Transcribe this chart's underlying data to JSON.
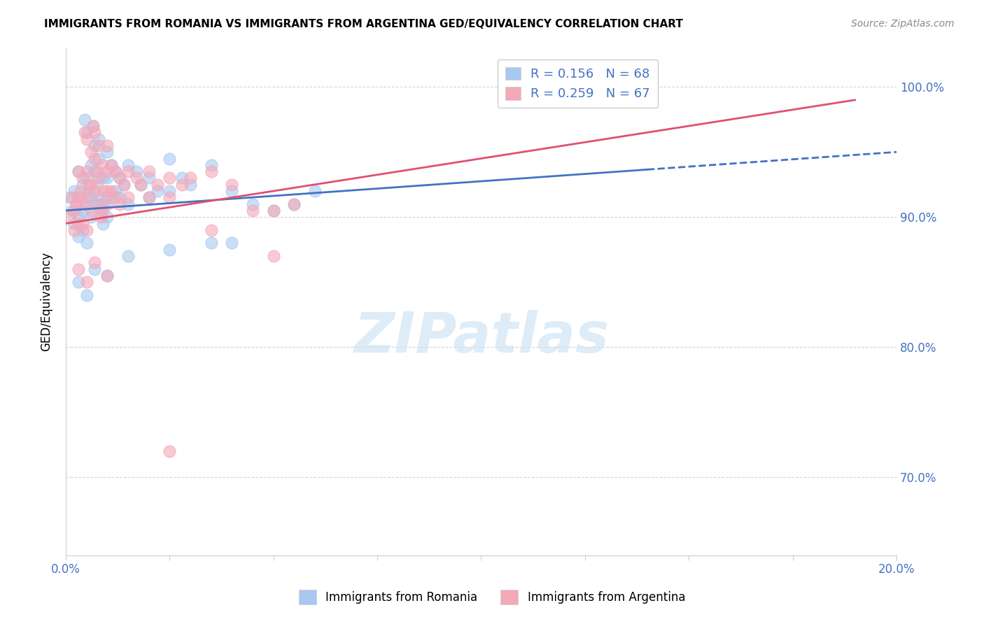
{
  "title": "IMMIGRANTS FROM ROMANIA VS IMMIGRANTS FROM ARGENTINA GED/EQUIVALENCY CORRELATION CHART",
  "source": "Source: ZipAtlas.com",
  "ylabel": "GED/Equivalency",
  "y_ticks": [
    70.0,
    80.0,
    90.0,
    100.0
  ],
  "x_range": [
    0.0,
    20.0
  ],
  "y_range": [
    64.0,
    103.0
  ],
  "romania_color": "#A8C8F0",
  "argentina_color": "#F4A8B8",
  "romania_line_color": "#4472C4",
  "argentina_line_color": "#E05070",
  "romania_points": [
    [
      0.1,
      91.5
    ],
    [
      0.15,
      90.5
    ],
    [
      0.2,
      92.0
    ],
    [
      0.2,
      89.5
    ],
    [
      0.25,
      91.0
    ],
    [
      0.3,
      93.5
    ],
    [
      0.3,
      90.0
    ],
    [
      0.3,
      88.5
    ],
    [
      0.35,
      91.5
    ],
    [
      0.4,
      92.5
    ],
    [
      0.4,
      90.5
    ],
    [
      0.4,
      89.0
    ],
    [
      0.45,
      97.5
    ],
    [
      0.5,
      96.5
    ],
    [
      0.5,
      93.0
    ],
    [
      0.5,
      91.0
    ],
    [
      0.5,
      88.0
    ],
    [
      0.55,
      92.0
    ],
    [
      0.6,
      94.0
    ],
    [
      0.6,
      91.5
    ],
    [
      0.6,
      90.0
    ],
    [
      0.65,
      97.0
    ],
    [
      0.7,
      95.5
    ],
    [
      0.7,
      93.5
    ],
    [
      0.7,
      91.0
    ],
    [
      0.75,
      92.5
    ],
    [
      0.8,
      96.0
    ],
    [
      0.8,
      94.5
    ],
    [
      0.8,
      91.5
    ],
    [
      0.85,
      90.5
    ],
    [
      0.9,
      93.0
    ],
    [
      0.9,
      91.0
    ],
    [
      0.9,
      89.5
    ],
    [
      1.0,
      95.0
    ],
    [
      1.0,
      93.0
    ],
    [
      1.0,
      91.5
    ],
    [
      1.0,
      90.0
    ],
    [
      1.1,
      94.0
    ],
    [
      1.1,
      91.5
    ],
    [
      1.2,
      93.5
    ],
    [
      1.2,
      92.0
    ],
    [
      1.3,
      93.0
    ],
    [
      1.3,
      91.5
    ],
    [
      1.4,
      92.5
    ],
    [
      1.5,
      94.0
    ],
    [
      1.5,
      91.0
    ],
    [
      1.7,
      93.5
    ],
    [
      1.8,
      92.5
    ],
    [
      2.0,
      93.0
    ],
    [
      2.0,
      91.5
    ],
    [
      2.2,
      92.0
    ],
    [
      2.5,
      94.5
    ],
    [
      2.5,
      92.0
    ],
    [
      2.8,
      93.0
    ],
    [
      3.0,
      92.5
    ],
    [
      3.5,
      94.0
    ],
    [
      3.5,
      88.0
    ],
    [
      4.0,
      92.0
    ],
    [
      4.5,
      91.0
    ],
    [
      5.0,
      90.5
    ],
    [
      5.5,
      91.0
    ],
    [
      6.0,
      92.0
    ],
    [
      0.3,
      85.0
    ],
    [
      0.5,
      84.0
    ],
    [
      0.7,
      86.0
    ],
    [
      1.0,
      85.5
    ],
    [
      1.5,
      87.0
    ],
    [
      2.5,
      87.5
    ],
    [
      4.0,
      88.0
    ]
  ],
  "argentina_points": [
    [
      0.1,
      90.0
    ],
    [
      0.15,
      91.5
    ],
    [
      0.2,
      90.5
    ],
    [
      0.2,
      89.0
    ],
    [
      0.25,
      91.0
    ],
    [
      0.3,
      93.5
    ],
    [
      0.3,
      91.5
    ],
    [
      0.3,
      89.5
    ],
    [
      0.35,
      92.0
    ],
    [
      0.4,
      93.0
    ],
    [
      0.4,
      91.0
    ],
    [
      0.4,
      89.5
    ],
    [
      0.45,
      96.5
    ],
    [
      0.5,
      96.0
    ],
    [
      0.5,
      93.5
    ],
    [
      0.5,
      91.5
    ],
    [
      0.5,
      89.0
    ],
    [
      0.55,
      92.5
    ],
    [
      0.6,
      95.0
    ],
    [
      0.6,
      92.5
    ],
    [
      0.6,
      90.5
    ],
    [
      0.65,
      97.0
    ],
    [
      0.7,
      96.5
    ],
    [
      0.7,
      94.5
    ],
    [
      0.7,
      92.0
    ],
    [
      0.75,
      93.5
    ],
    [
      0.8,
      95.5
    ],
    [
      0.8,
      93.0
    ],
    [
      0.8,
      91.0
    ],
    [
      0.85,
      90.0
    ],
    [
      0.9,
      94.0
    ],
    [
      0.9,
      92.0
    ],
    [
      0.9,
      90.5
    ],
    [
      1.0,
      95.5
    ],
    [
      1.0,
      93.5
    ],
    [
      1.0,
      92.0
    ],
    [
      1.0,
      91.0
    ],
    [
      1.1,
      94.0
    ],
    [
      1.1,
      92.0
    ],
    [
      1.2,
      93.5
    ],
    [
      1.2,
      91.5
    ],
    [
      1.3,
      93.0
    ],
    [
      1.3,
      91.0
    ],
    [
      1.4,
      92.5
    ],
    [
      1.5,
      93.5
    ],
    [
      1.5,
      91.5
    ],
    [
      1.7,
      93.0
    ],
    [
      1.8,
      92.5
    ],
    [
      2.0,
      93.5
    ],
    [
      2.0,
      91.5
    ],
    [
      2.2,
      92.5
    ],
    [
      2.5,
      93.0
    ],
    [
      2.5,
      91.5
    ],
    [
      2.8,
      92.5
    ],
    [
      3.0,
      93.0
    ],
    [
      3.5,
      93.5
    ],
    [
      3.5,
      89.0
    ],
    [
      4.0,
      92.5
    ],
    [
      4.5,
      90.5
    ],
    [
      5.0,
      90.5
    ],
    [
      5.0,
      87.0
    ],
    [
      5.5,
      91.0
    ],
    [
      0.3,
      86.0
    ],
    [
      0.5,
      85.0
    ],
    [
      0.7,
      86.5
    ],
    [
      1.0,
      85.5
    ],
    [
      2.5,
      72.0
    ]
  ],
  "romania_line": [
    0.0,
    90.5,
    20.0,
    95.0
  ],
  "argentina_line": [
    0.0,
    89.5,
    20.0,
    99.5
  ],
  "romania_solid_end": 14.0,
  "argentina_solid_end": 19.0
}
